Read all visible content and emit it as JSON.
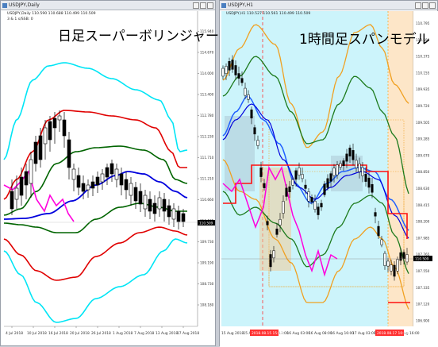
{
  "colors": {
    "left_bg": "#ffffff",
    "right_bg": "#ccf4fb",
    "up": "#ffffff",
    "down": "#000000",
    "midband": "#006400",
    "sigma1": "#e00000",
    "sigma2": "#00e5f5",
    "ma_blue": "#0000dd",
    "chikou": "#ff00dd",
    "band_orange": "#f0a020",
    "band_green": "#1c7a1c",
    "blue2": "#2060ff",
    "red_step": "#ff1010",
    "highlight": "#ff3030"
  },
  "left": {
    "window_title": "USDJPY,Daily",
    "info_line1": "USDJPY,Daily 110.590 110.688 110.499 110.509",
    "info_line2": "3 &amp; 1 s/SSB: 0",
    "caption": "日足スーパーボリンジャー",
    "price_label": "110.509",
    "yticks": [
      "115.940",
      "114.670",
      "114.000",
      "113.400",
      "112.780",
      "112.230",
      "111.710",
      "111.210",
      "110.660",
      "110.185",
      "109.730",
      "109.190",
      "108.730",
      "108.180"
    ],
    "xticks": [
      "4 Jul 2018",
      "10 Jul 2018",
      "16 Jul 2018",
      "20 Jul 2018",
      "26 Jul 2018",
      "1 Aug 2018",
      "7 Aug 2018",
      "13 Aug 2018",
      "17 Aug 2018"
    ]
  },
  "right": {
    "window_title": "USDJPY,H1",
    "info_line1": "USDJPY,H1 110.527 110.561 110.499 110.509",
    "caption": "1時間足スパンモデル",
    "price_label": "110.509",
    "yticks": [
      "110.795",
      "110.590",
      "110.375",
      "110.155",
      "109.935",
      "109.720",
      "109.505",
      "109.285",
      "109.070",
      "108.850",
      "108.630",
      "108.415",
      "108.200",
      "107.985",
      "107.765",
      "107.550",
      "107.335",
      "107.120",
      "106.900"
    ],
    "xticks": [
      "15 Aug 2018",
      "15 Aug 08:00",
      "15 Aug 13:00",
      "16 Aug 03:00",
      "16 Aug 08:00",
      "16 Aug 16:00",
      "17 Aug 03:00",
      "17 Aug 08:00",
      "17 Aug 16:00"
    ],
    "highlight_dates": [
      "2018.08.15 15:00",
      "2018.08.17 10:00"
    ]
  }
}
